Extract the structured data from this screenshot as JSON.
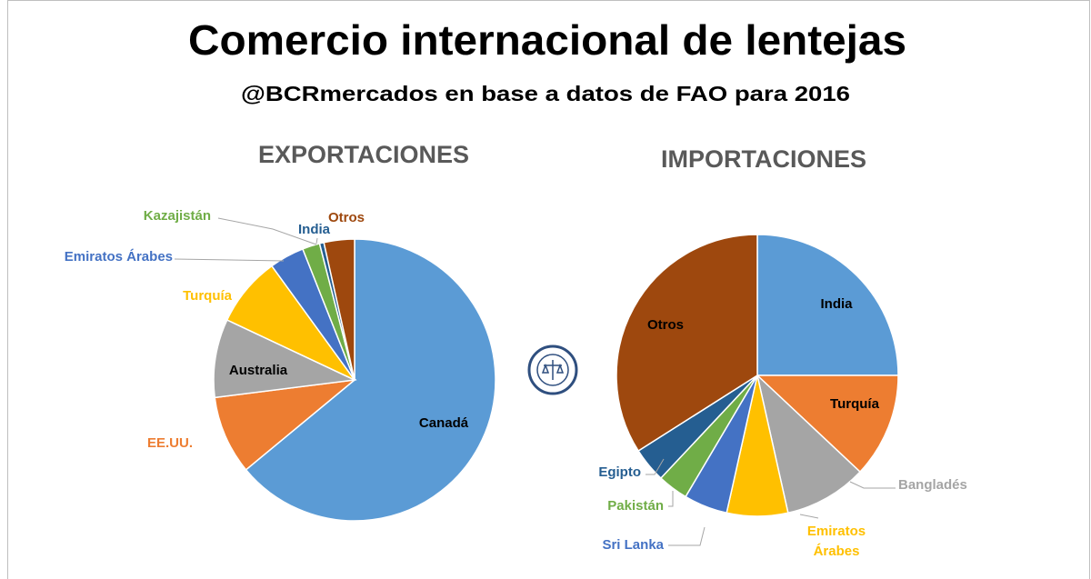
{
  "title": "Comercio internacional de lentejas",
  "subtitle": "@BCRmercados en base a datos de FAO para 2016",
  "chart_data": [
    {
      "type": "pie",
      "title": "EXPORTACIONES",
      "categories": [
        "Canadá",
        "EE.UU.",
        "Australia",
        "Turquía",
        "Emiratos Árabes",
        "Kazajistán",
        "India",
        "Otros"
      ],
      "values": [
        64,
        9,
        9,
        8,
        4,
        2,
        0.5,
        3.5
      ],
      "colors": [
        "#5b9bd5",
        "#ed7d31",
        "#a5a5a5",
        "#ffc000",
        "#4472c4",
        "#70ad47",
        "#255e91",
        "#9e480e"
      ]
    },
    {
      "type": "pie",
      "title": "IMPORTACIONES",
      "categories": [
        "India",
        "Turquía",
        "Bangladés",
        "Emiratos Árabes",
        "Sri Lanka",
        "Pakistán",
        "Egipto",
        "Otros"
      ],
      "values": [
        25,
        12,
        9.5,
        7,
        5,
        3.5,
        4,
        34
      ],
      "colors": [
        "#5b9bd5",
        "#ed7d31",
        "#a5a5a5",
        "#ffc000",
        "#4472c4",
        "#70ad47",
        "#255e91",
        "#9e480e"
      ]
    }
  ]
}
